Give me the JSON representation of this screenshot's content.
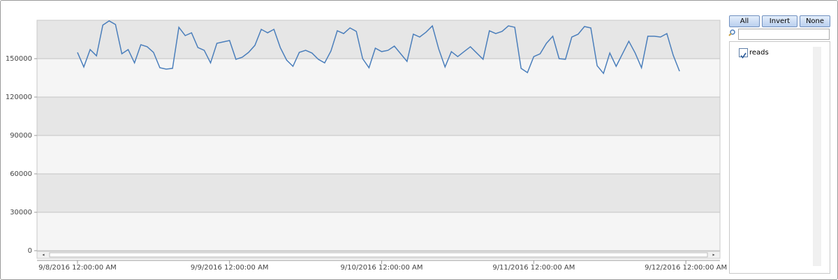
{
  "chart_data": {
    "type": "line",
    "x": [
      "2016-09-08T00:00",
      "2016-09-08T01:00",
      "2016-09-08T02:00",
      "2016-09-08T03:00",
      "2016-09-08T04:00",
      "2016-09-08T05:00",
      "2016-09-08T06:00",
      "2016-09-08T07:00",
      "2016-09-08T08:00",
      "2016-09-08T09:00",
      "2016-09-08T10:00",
      "2016-09-08T11:00",
      "2016-09-08T12:00",
      "2016-09-08T13:00",
      "2016-09-08T14:00",
      "2016-09-08T15:00",
      "2016-09-08T16:00",
      "2016-09-08T17:00",
      "2016-09-08T18:00",
      "2016-09-08T19:00",
      "2016-09-08T20:00",
      "2016-09-08T21:00",
      "2016-09-08T22:00",
      "2016-09-08T23:00",
      "2016-09-09T00:00",
      "2016-09-09T01:00",
      "2016-09-09T02:00",
      "2016-09-09T03:00",
      "2016-09-09T04:00",
      "2016-09-09T05:00",
      "2016-09-09T06:00",
      "2016-09-09T07:00",
      "2016-09-09T08:00",
      "2016-09-09T09:00",
      "2016-09-09T10:00",
      "2016-09-09T11:00",
      "2016-09-09T12:00",
      "2016-09-09T13:00",
      "2016-09-09T14:00",
      "2016-09-09T15:00",
      "2016-09-09T16:00",
      "2016-09-09T17:00",
      "2016-09-09T18:00",
      "2016-09-09T19:00",
      "2016-09-09T20:00",
      "2016-09-09T21:00",
      "2016-09-09T22:00",
      "2016-09-09T23:00",
      "2016-09-10T00:00",
      "2016-09-10T01:00",
      "2016-09-10T02:00",
      "2016-09-10T03:00",
      "2016-09-10T04:00",
      "2016-09-10T05:00",
      "2016-09-10T06:00",
      "2016-09-10T07:00",
      "2016-09-10T08:00",
      "2016-09-10T09:00",
      "2016-09-10T10:00",
      "2016-09-10T11:00",
      "2016-09-10T12:00",
      "2016-09-10T13:00",
      "2016-09-10T14:00",
      "2016-09-10T15:00",
      "2016-09-10T16:00",
      "2016-09-10T17:00",
      "2016-09-10T18:00",
      "2016-09-10T19:00",
      "2016-09-10T20:00",
      "2016-09-10T21:00",
      "2016-09-10T22:00",
      "2016-09-10T23:00",
      "2016-09-11T00:00",
      "2016-09-11T01:00",
      "2016-09-11T02:00",
      "2016-09-11T03:00",
      "2016-09-11T04:00",
      "2016-09-11T05:00",
      "2016-09-11T06:00",
      "2016-09-11T07:00",
      "2016-09-11T08:00",
      "2016-09-11T09:00",
      "2016-09-11T10:00",
      "2016-09-11T11:00",
      "2016-09-11T12:00",
      "2016-09-11T13:00",
      "2016-09-11T14:00",
      "2016-09-11T15:00",
      "2016-09-11T16:00",
      "2016-09-11T17:00",
      "2016-09-11T18:00",
      "2016-09-11T19:00",
      "2016-09-11T20:00",
      "2016-09-11T21:00",
      "2016-09-11T22:00",
      "2016-09-11T23:00"
    ],
    "series": [
      {
        "name": "reads",
        "color": "#4a7ebb",
        "values": [
          154900,
          143500,
          157100,
          152200,
          176200,
          179500,
          176700,
          153800,
          157100,
          146700,
          160900,
          159300,
          154900,
          142900,
          141800,
          142400,
          174500,
          168000,
          170200,
          158700,
          156500,
          146700,
          162000,
          163100,
          164200,
          149500,
          151100,
          154900,
          160400,
          172900,
          170200,
          172900,
          158700,
          148900,
          144000,
          154900,
          156500,
          154400,
          149500,
          146700,
          156000,
          171800,
          169600,
          174000,
          171300,
          150000,
          142900,
          158200,
          155500,
          156500,
          159800,
          153800,
          147800,
          169100,
          166900,
          170700,
          175600,
          157600,
          143500,
          155500,
          151600,
          155500,
          159300,
          154400,
          149500,
          171800,
          169600,
          171300,
          175600,
          174500,
          142400,
          139100,
          151600,
          153800,
          162000,
          167500,
          150000,
          149500,
          166900,
          169100,
          175100,
          174000,
          144500,
          138500,
          154400,
          144000,
          153800,
          163600,
          154400,
          142900,
          167500,
          167500,
          166900,
          169600,
          152700,
          140200
        ]
      }
    ],
    "xlim": [
      "2016-09-07T17:37",
      "2016-09-12T05:23"
    ],
    "xticks": [
      {
        "value": "2016-09-08T00:00",
        "label": "9/8/2016 12:00:00 AM"
      },
      {
        "value": "2016-09-09T00:00",
        "label": "9/9/2016 12:00:00 AM"
      },
      {
        "value": "2016-09-10T00:00",
        "label": "9/10/2016 12:00:00 AM"
      },
      {
        "value": "2016-09-11T00:00",
        "label": "9/11/2016 12:00:00 AM"
      },
      {
        "value": "2016-09-12T00:00",
        "label": "9/12/2016 12:00:00 AM"
      }
    ],
    "ylim": [
      0,
      180000
    ],
    "yticks": [
      0,
      30000,
      60000,
      90000,
      120000,
      150000
    ],
    "grid": true
  },
  "controls": {
    "buttons": [
      "All",
      "Invert",
      "None"
    ]
  }
}
